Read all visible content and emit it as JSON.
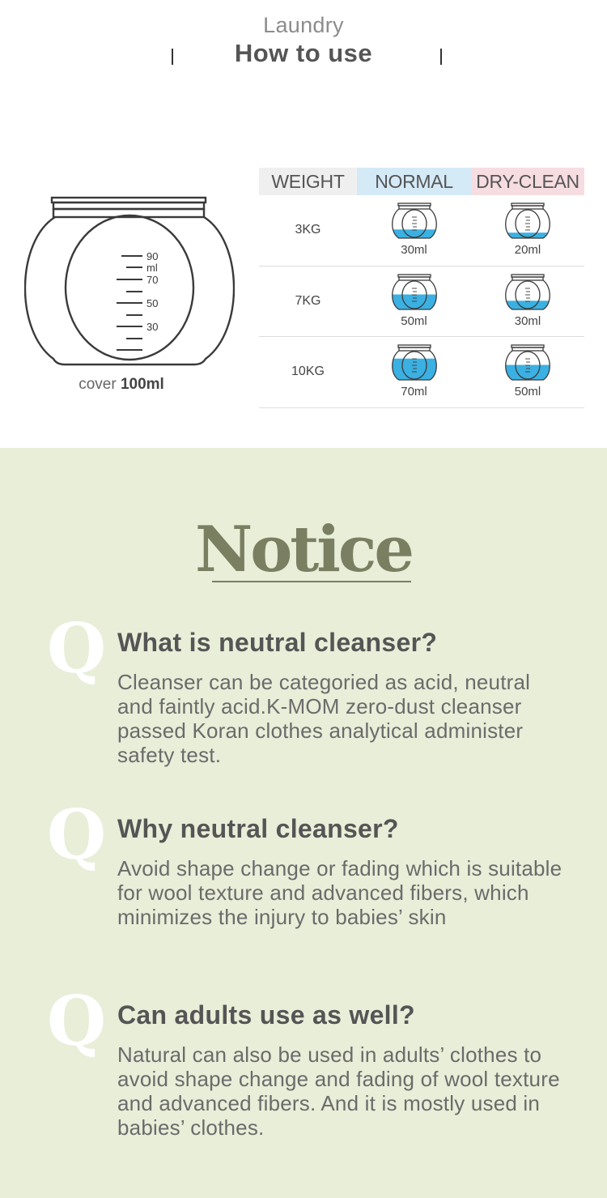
{
  "header": {
    "subtitle": "Laundry",
    "title": "How to use"
  },
  "cup": {
    "marks": [
      "90",
      "ml",
      "70",
      "50",
      "30"
    ],
    "caption_prefix": "cover",
    "caption_value": "100ml"
  },
  "table": {
    "headers": {
      "weight": "WEIGHT",
      "normal": "NORMAL",
      "dry_clean": "DRY-CLEAN"
    },
    "colors": {
      "weight_bg": "#efefef",
      "normal_bg": "#d5eaf7",
      "dry_clean_bg": "#f6dde1",
      "water": "#3bb0e2"
    },
    "rows": [
      {
        "weight": "3KG",
        "normal": "30ml",
        "dry_clean": "20ml",
        "normal_fill": 0.3,
        "dry_clean_fill": 0.2
      },
      {
        "weight": "7KG",
        "normal": "50ml",
        "dry_clean": "30ml",
        "normal_fill": 0.5,
        "dry_clean_fill": 0.3
      },
      {
        "weight": "10KG",
        "normal": "70ml",
        "dry_clean": "50ml",
        "normal_fill": 0.7,
        "dry_clean_fill": 0.5
      }
    ]
  },
  "notice": {
    "title": "Notice",
    "background": "#e8eed8",
    "accent": "#7a7f62",
    "q_icon": "Q",
    "items": [
      {
        "question": "What is neutral cleanser?",
        "answer": "Cleanser can be categoried as acid, neutral and faintly acid.K-MOM zero-dust cleanser passed Koran clothes analytical administer safety test."
      },
      {
        "question": "Why neutral cleanser?",
        "answer": "Avoid shape change or fading which is suitable for wool texture and advanced fibers, which minimizes the injury to babies’ skin"
      },
      {
        "question": "Can adults use as well?",
        "answer": "Natural can also be used in adults’ clothes to avoid shape change and fading of wool texture and advanced fibers. And it is mostly used in babies’ clothes."
      }
    ]
  }
}
